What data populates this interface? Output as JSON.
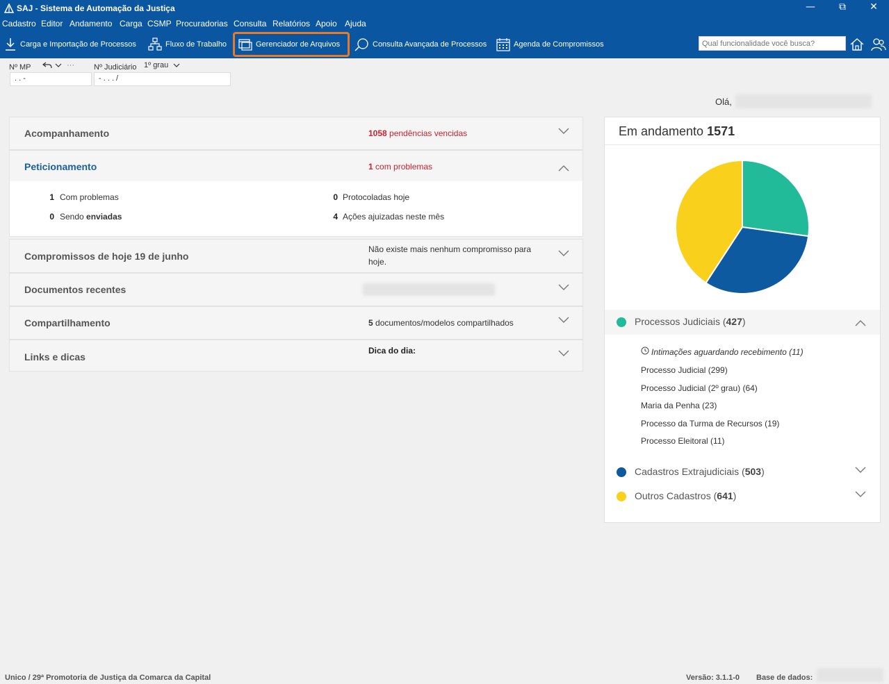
{
  "window": {
    "title": "SAJ - Sistema de Automação da Justiça",
    "controls": {
      "minimize": "—",
      "restore": "⧉",
      "close": "✕"
    }
  },
  "menu": [
    "Cadastro",
    "Editor",
    "Andamento",
    "Carga",
    "CSMP",
    "Procuradorias",
    "Consulta",
    "Relatórios",
    "Apoio",
    "Ajuda"
  ],
  "toolbar": {
    "carga": "Carga e Importação de Processos",
    "fluxo": "Fluxo de Trabalho",
    "gerenciador": "Gerenciador de Arquivos",
    "consulta": "Consulta Avançada de Processos",
    "agenda": "Agenda de Compromissos",
    "search_placeholder": "Qual funcionalidade você busca?"
  },
  "search_row": {
    "mp_label": "Nº MP",
    "mp_value": ".   .       -",
    "judiciario_label": "Nº Judiciário",
    "grau": "1º grau",
    "judiciario_value": "-  .  .  .   /",
    "more": "···"
  },
  "greeting": "Olá,",
  "panels": {
    "acompanhamento": {
      "title": "Acompanhamento",
      "count": "1058",
      "info": " pendências vencidas"
    },
    "peticionamento": {
      "title": "Peticionamento",
      "count": "1",
      "info": " com problemas",
      "stats": [
        {
          "num": "1",
          "label": "Com problemas"
        },
        {
          "num": "0",
          "label": "Protocoladas hoje"
        },
        {
          "num": "0",
          "label_prefix": "Sendo ",
          "label_bold": "enviadas"
        },
        {
          "num": "4",
          "label": "Ações ajuizadas neste mês"
        }
      ]
    },
    "compromissos": {
      "title": "Compromissos de hoje 19 de junho",
      "info_line1": "Não existe mais nenhum compromisso para",
      "info_line2": "hoje."
    },
    "documentos": {
      "title": "Documentos recentes"
    },
    "compartilhamento": {
      "title": "Compartilhamento",
      "count": "5",
      "info": " documentos/modelos compartilhados"
    },
    "links": {
      "title": "Links e dicas",
      "info": "Dica do dia:"
    }
  },
  "card": {
    "title": "Em andamento",
    "total": "1571",
    "groups": [
      {
        "label": "Processos Judiciais",
        "count": "427",
        "color": "#22bb99"
      },
      {
        "label": "Cadastros Extrajudiciais",
        "count": "503",
        "color": "#0d5aa0"
      },
      {
        "label": "Outros Cadastros",
        "count": "641",
        "color": "#f9d11c"
      }
    ],
    "items": [
      "Intimações aguardando recebimento (11)",
      "Processo Judicial (299)",
      "Processo Judicial (2º grau) (64)",
      "Maria da Penha (23)",
      "Processo da Turma de Recursos (19)",
      "Processo Eleitoral (11)"
    ]
  },
  "chart_data": {
    "type": "pie",
    "categories": [
      "Processos Judiciais",
      "Cadastros Extrajudiciais",
      "Outros Cadastros"
    ],
    "values": [
      427,
      503,
      641
    ],
    "colors": [
      "#22bb99",
      "#0d5aa0",
      "#f9d11c"
    ]
  },
  "status": {
    "unit": "Unico / 29ª Promotoria de Justiça da Comarca da Capital",
    "version": "Versão: 3.1.1-0",
    "db": "Base de dados:"
  }
}
